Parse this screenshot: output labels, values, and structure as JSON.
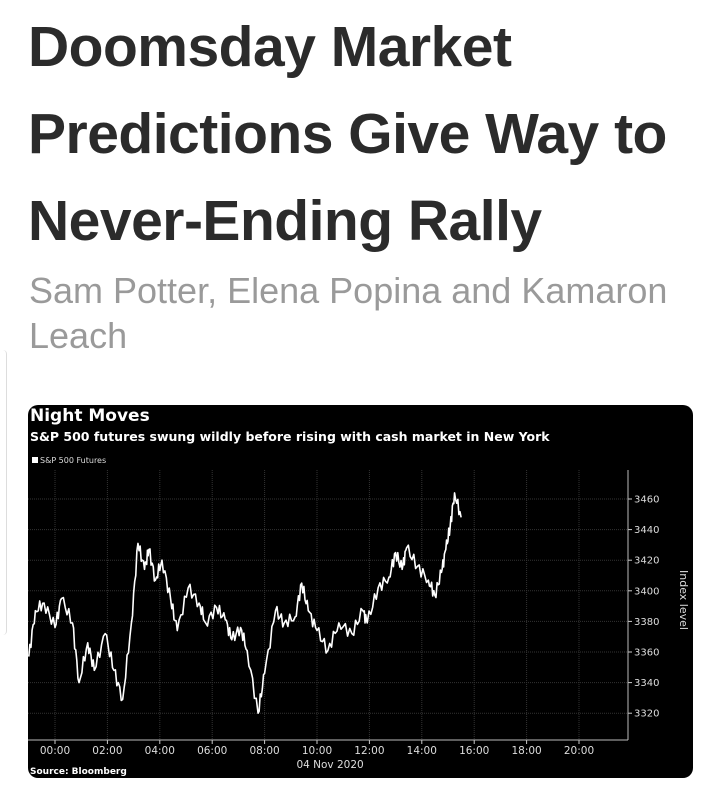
{
  "article": {
    "headline": "Doomsday Market Predictions Give Way to Never-Ending Rally",
    "authors": "Sam Potter, Elena Popina and Kamaron Leach"
  },
  "chart_data": {
    "type": "line",
    "title": "Night Moves",
    "subtitle": "S&P 500 futures swung wildly before rising with cash market in New York",
    "legend": [
      "S&P 500 Futures"
    ],
    "legend_placement": "top-left",
    "ylabel": "Index level",
    "xlabel": "04 Nov 2020",
    "source": "Source: Bloomberg",
    "y_axis_side": "right",
    "ylim": [
      3300,
      3480
    ],
    "yticks": [
      3320,
      3340,
      3360,
      3380,
      3400,
      3420,
      3440,
      3460
    ],
    "xlim": [
      "2020-11-03 23:00",
      "2020-11-04 22:00"
    ],
    "xticks": [
      "00:00",
      "02:00",
      "04:00",
      "06:00",
      "08:00",
      "10:00",
      "12:00",
      "14:00",
      "16:00",
      "18:00",
      "20:00"
    ],
    "grid": true,
    "colors": {
      "background": "#000000",
      "line": "#ffffff",
      "grid": "#333333"
    },
    "series": [
      {
        "name": "S&P 500 Futures",
        "x": [
          "2020-11-03 23:00",
          "2020-11-03 23:15",
          "2020-11-03 23:35",
          "2020-11-04 00:00",
          "2020-11-04 00:15",
          "2020-11-04 00:40",
          "2020-11-04 00:55",
          "2020-11-04 01:15",
          "2020-11-04 01:30",
          "2020-11-04 01:55",
          "2020-11-04 02:15",
          "2020-11-04 02:35",
          "2020-11-04 02:55",
          "2020-11-04 03:10",
          "2020-11-04 03:25",
          "2020-11-04 03:35",
          "2020-11-04 03:50",
          "2020-11-04 04:05",
          "2020-11-04 04:25",
          "2020-11-04 04:40",
          "2020-11-04 05:05",
          "2020-11-04 05:30",
          "2020-11-04 05:45",
          "2020-11-04 06:10",
          "2020-11-04 06:30",
          "2020-11-04 06:45",
          "2020-11-04 07:05",
          "2020-11-04 07:20",
          "2020-11-04 07:45",
          "2020-11-04 08:00",
          "2020-11-04 08:25",
          "2020-11-04 08:45",
          "2020-11-04 09:10",
          "2020-11-04 09:25",
          "2020-11-04 09:40",
          "2020-11-04 10:00",
          "2020-11-04 10:25",
          "2020-11-04 10:50",
          "2020-11-04 11:20",
          "2020-11-04 11:45",
          "2020-11-04 11:55",
          "2020-11-04 12:20",
          "2020-11-04 12:45",
          "2020-11-04 13:00",
          "2020-11-04 13:15",
          "2020-11-04 13:25",
          "2020-11-04 13:50",
          "2020-11-04 14:15",
          "2020-11-04 14:30",
          "2020-11-04 14:45",
          "2020-11-04 14:55",
          "2020-11-04 15:05",
          "2020-11-04 15:15",
          "2020-11-04 15:30"
        ],
        "values": [
          3357,
          3387,
          3392,
          3376,
          3395,
          3379,
          3340,
          3366,
          3348,
          3372,
          3348,
          3329,
          3379,
          3431,
          3414,
          3427,
          3407,
          3420,
          3394,
          3374,
          3402,
          3392,
          3379,
          3389,
          3381,
          3368,
          3376,
          3361,
          3320,
          3346,
          3387,
          3379,
          3383,
          3405,
          3387,
          3374,
          3361,
          3379,
          3372,
          3387,
          3379,
          3402,
          3409,
          3425,
          3414,
          3428,
          3416,
          3407,
          3397,
          3412,
          3427,
          3442,
          3464,
          3448
        ]
      }
    ]
  }
}
